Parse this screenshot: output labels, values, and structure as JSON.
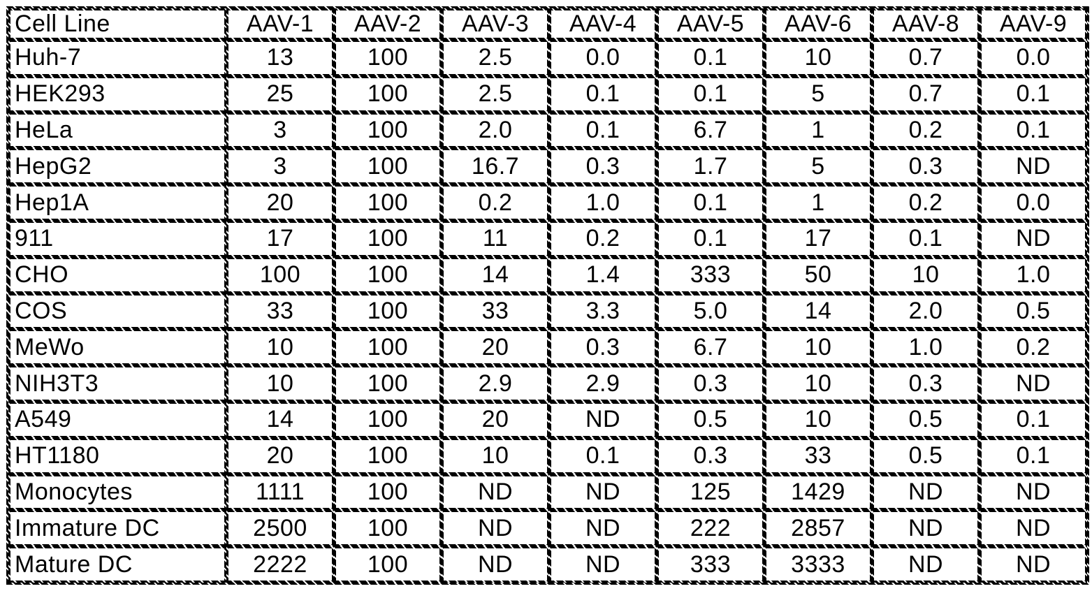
{
  "page": {
    "background": "#ffffff"
  },
  "colors": {
    "border": "#000000",
    "text": "#000000",
    "background": "#ffffff"
  },
  "table": {
    "columns": [
      "Cell Line",
      "AAV-1",
      "AAV-2",
      "AAV-3",
      "AAV-4",
      "AAV-5",
      "AAV-6",
      "AAV-8",
      "AAV-9"
    ],
    "rows": [
      {
        "cell_line": "Huh-7",
        "values": [
          "13",
          "100",
          "2.5",
          "0.0",
          "0.1",
          "10",
          "0.7",
          "0.0"
        ]
      },
      {
        "cell_line": "HEK293",
        "values": [
          "25",
          "100",
          "2.5",
          "0.1",
          "0.1",
          "5",
          "0.7",
          "0.1"
        ]
      },
      {
        "cell_line": "HeLa",
        "values": [
          "3",
          "100",
          "2.0",
          "0.1",
          "6.7",
          "1",
          "0.2",
          "0.1"
        ]
      },
      {
        "cell_line": "HepG2",
        "values": [
          "3",
          "100",
          "16.7",
          "0.3",
          "1.7",
          "5",
          "0.3",
          "ND"
        ]
      },
      {
        "cell_line": "Hep1A",
        "values": [
          "20",
          "100",
          "0.2",
          "1.0",
          "0.1",
          "1",
          "0.2",
          "0.0"
        ]
      },
      {
        "cell_line": "911",
        "values": [
          "17",
          "100",
          "11",
          "0.2",
          "0.1",
          "17",
          "0.1",
          "ND"
        ]
      },
      {
        "cell_line": "CHO",
        "values": [
          "100",
          "100",
          "14",
          "1.4",
          "333",
          "50",
          "10",
          "1.0"
        ]
      },
      {
        "cell_line": "COS",
        "values": [
          "33",
          "100",
          "33",
          "3.3",
          "5.0",
          "14",
          "2.0",
          "0.5"
        ]
      },
      {
        "cell_line": "MeWo",
        "values": [
          "10",
          "100",
          "20",
          "0.3",
          "6.7",
          "10",
          "1.0",
          "0.2"
        ]
      },
      {
        "cell_line": "NIH3T3",
        "values": [
          "10",
          "100",
          "2.9",
          "2.9",
          "0.3",
          "10",
          "0.3",
          "ND"
        ]
      },
      {
        "cell_line": "A549",
        "values": [
          "14",
          "100",
          "20",
          "ND",
          "0.5",
          "10",
          "0.5",
          "0.1"
        ]
      },
      {
        "cell_line": "HT1180",
        "values": [
          "20",
          "100",
          "10",
          "0.1",
          "0.3",
          "33",
          "0.5",
          "0.1"
        ]
      },
      {
        "cell_line": "Monocytes",
        "values": [
          "1111",
          "100",
          "ND",
          "ND",
          "125",
          "1429",
          "ND",
          "ND"
        ]
      },
      {
        "cell_line": "Immature DC",
        "values": [
          "2500",
          "100",
          "ND",
          "ND",
          "222",
          "2857",
          "ND",
          "ND"
        ]
      },
      {
        "cell_line": "Mature DC",
        "values": [
          "2222",
          "100",
          "ND",
          "ND",
          "333",
          "3333",
          "ND",
          "ND"
        ]
      }
    ]
  }
}
